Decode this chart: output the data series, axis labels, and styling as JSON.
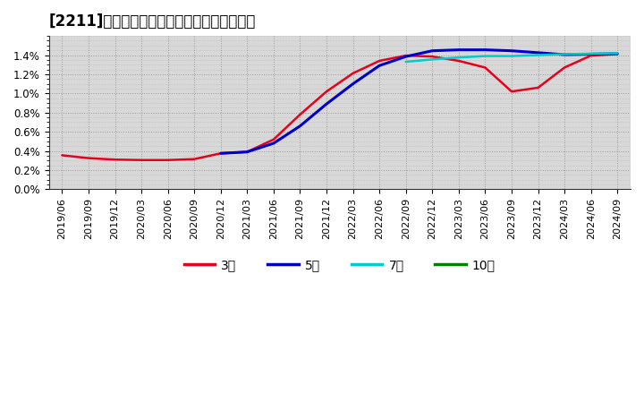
{
  "title": "[2211]　経常利益マージンの標準偏差の推移",
  "background_color": "#ffffff",
  "plot_bg_color": "#d8d8d8",
  "ylim": [
    0.0,
    0.016
  ],
  "yticks": [
    0.0,
    0.002,
    0.004,
    0.006,
    0.008,
    0.01,
    0.012,
    0.014
  ],
  "ytick_labels": [
    "0.0%",
    "0.2%",
    "0.4%",
    "0.6%",
    "0.8%",
    "1.0%",
    "1.2%",
    "1.4%"
  ],
  "x_labels": [
    "2019/06",
    "2019/09",
    "2019/12",
    "2020/03",
    "2020/06",
    "2020/09",
    "2020/12",
    "2021/03",
    "2021/06",
    "2021/09",
    "2021/12",
    "2022/03",
    "2022/06",
    "2022/09",
    "2022/12",
    "2023/03",
    "2023/06",
    "2023/09",
    "2023/12",
    "2024/03",
    "2024/06",
    "2024/09"
  ],
  "series": {
    "3y": {
      "color": "#e8001c",
      "label": "3年",
      "linewidth": 1.8,
      "data": [
        0.00355,
        0.00325,
        0.0031,
        0.00305,
        0.00305,
        0.00315,
        0.00375,
        0.0039,
        0.0052,
        0.0078,
        0.0102,
        0.0121,
        0.0134,
        0.01395,
        0.01385,
        0.0134,
        0.0127,
        0.0102,
        0.0106,
        0.0127,
        0.01395,
        0.0141
      ]
    },
    "5y": {
      "color": "#0000cc",
      "label": "5年",
      "linewidth": 2.2,
      "data": [
        null,
        null,
        null,
        null,
        null,
        null,
        0.00375,
        0.0039,
        0.0048,
        0.0066,
        0.0089,
        0.011,
        0.0129,
        0.01385,
        0.01445,
        0.01455,
        0.01455,
        0.01445,
        0.01425,
        0.01405,
        0.0141,
        0.01415
      ]
    },
    "7y": {
      "color": "#00cccc",
      "label": "7年",
      "linewidth": 1.8,
      "data": [
        null,
        null,
        null,
        null,
        null,
        null,
        null,
        null,
        null,
        null,
        null,
        null,
        null,
        0.0133,
        0.01355,
        0.01375,
        0.0139,
        0.0139,
        0.014,
        0.0141,
        0.01415,
        0.0142
      ]
    },
    "10y": {
      "color": "#008000",
      "label": "10年",
      "linewidth": 1.8,
      "data": [
        null,
        null,
        null,
        null,
        null,
        null,
        null,
        null,
        null,
        null,
        null,
        null,
        null,
        null,
        null,
        null,
        null,
        null,
        null,
        null,
        null,
        null
      ]
    }
  },
  "legend_labels": [
    "3年",
    "5年",
    "7年",
    "10年"
  ],
  "legend_colors": [
    "#e8001c",
    "#0000cc",
    "#00cccc",
    "#008000"
  ],
  "grid_color": "#999999",
  "grid_linestyle": ":",
  "grid_linewidth": 0.7,
  "title_fontsize": 12,
  "tick_fontsize": 8.5
}
